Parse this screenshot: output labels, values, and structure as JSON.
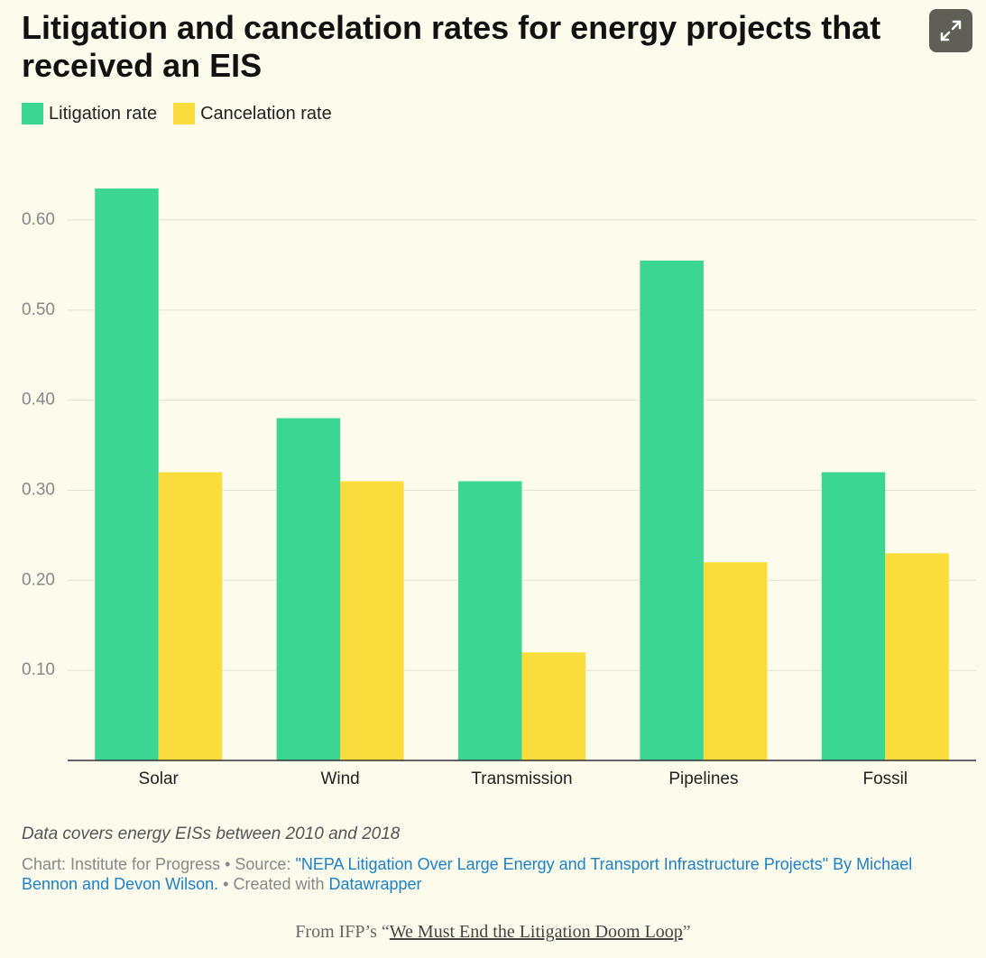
{
  "chart_data": {
    "type": "bar",
    "title": "Litigation and cancelation rates for energy projects that received an EIS",
    "categories": [
      "Solar",
      "Wind",
      "Transmission",
      "Pipelines",
      "Fossil"
    ],
    "series": [
      {
        "name": "Litigation rate",
        "color": "#3bd693",
        "values": [
          0.635,
          0.38,
          0.31,
          0.555,
          0.32
        ]
      },
      {
        "name": "Cancelation rate",
        "color": "#fadc3a",
        "values": [
          0.32,
          0.31,
          0.12,
          0.22,
          0.23
        ]
      }
    ],
    "ylim": [
      0,
      0.65
    ],
    "yticks": [
      {
        "value": 0.1,
        "label": "0.10"
      },
      {
        "value": 0.2,
        "label": "0.20"
      },
      {
        "value": 0.3,
        "label": "0.30"
      },
      {
        "value": 0.4,
        "label": "0.40"
      },
      {
        "value": 0.5,
        "label": "0.50"
      },
      {
        "value": 0.6,
        "label": "0.60"
      }
    ],
    "grid": true,
    "notes": "Data covers energy EISs between 2010 and 2018",
    "credit": {
      "prefix": "Chart: Institute for Progress • Source: ",
      "source": "\"NEPA Litigation Over Large Energy and Transport Infrastructure Projects\" By Michael Bennon and Devon Wilson.",
      "created": " • Created with ",
      "tool": "Datawrapper"
    },
    "caption": {
      "before": "From IFP’s “",
      "link": "We Must End the Litigation Doom Loop",
      "after": "”"
    }
  }
}
